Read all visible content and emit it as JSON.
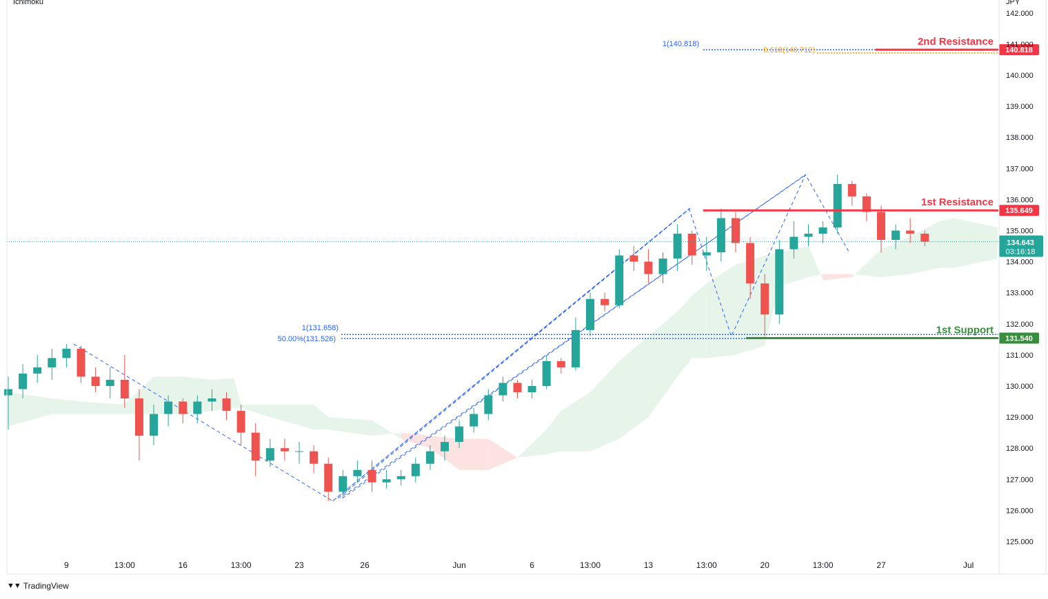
{
  "indicator": "Ichimoku",
  "brand": "TradingView",
  "colors": {
    "up": "#26a69a",
    "down": "#ef5350",
    "resistance": "#f23645",
    "support": "#388e3c",
    "fib_blue": "#2962ff",
    "fib_orange": "#ff9800",
    "cloud_bull": "#e6f4ea",
    "cloud_bear": "#fde2e2",
    "price_tag": "#26a69a"
  },
  "chart_data": {
    "type": "candlestick",
    "instrument_currency": "JPY",
    "y_axis": {
      "min": 124.5,
      "max": 142.4,
      "ticks": [
        "142.000",
        "141.000",
        "140.000",
        "139.000",
        "138.000",
        "137.000",
        "136.000",
        "135.000",
        "134.000",
        "133.000",
        "132.000",
        "131.000",
        "130.000",
        "129.000",
        "128.000",
        "127.000",
        "126.000",
        "125.000"
      ]
    },
    "x_axis": {
      "ticks": [
        {
          "label": "9",
          "i": 4
        },
        {
          "label": "13:00",
          "i": 8
        },
        {
          "label": "16",
          "i": 12
        },
        {
          "label": "13:00",
          "i": 16
        },
        {
          "label": "23",
          "i": 20
        },
        {
          "label": "26",
          "i": 24.5
        },
        {
          "label": "Jun",
          "i": 31
        },
        {
          "label": "6",
          "i": 36
        },
        {
          "label": "13:00",
          "i": 40
        },
        {
          "label": "13",
          "i": 44
        },
        {
          "label": "13:00",
          "i": 48
        },
        {
          "label": "20",
          "i": 52
        },
        {
          "label": "13:00",
          "i": 56
        },
        {
          "label": "27",
          "i": 60
        },
        {
          "label": "Jul",
          "i": 66
        }
      ]
    },
    "levels": [
      {
        "name": "2nd Resistance",
        "value": 140.818,
        "label": "140.818",
        "kind": "resistance"
      },
      {
        "name": "1st Resistance",
        "value": 135.649,
        "label": "135.649",
        "kind": "resistance"
      },
      {
        "name": "1st Support",
        "value": 131.54,
        "label": "131.540",
        "kind": "support"
      }
    ],
    "fib_labels": [
      {
        "text": "1(140.818)",
        "value": 140.818,
        "color": "blue"
      },
      {
        "text": "0.618(140.712)",
        "value": 140.712,
        "color": "orange"
      },
      {
        "text": "1(131.658)",
        "value": 131.658,
        "color": "blue"
      },
      {
        "text": "50.00%(131.526)",
        "value": 131.526,
        "color": "blue"
      }
    ],
    "current": {
      "price": "134.643",
      "countdown": "03:16:18",
      "value": 134.643
    },
    "pivots": [
      {
        "i": 4.5,
        "v": 131.35
      },
      {
        "i": 22.3,
        "v": 126.3
      },
      {
        "i": 46.8,
        "v": 135.7
      },
      {
        "i": 49.7,
        "v": 131.6
      },
      {
        "i": 54.8,
        "v": 136.8
      },
      {
        "i": 57.8,
        "v": 134.3
      }
    ],
    "candles": [
      {
        "o": 129.7,
        "h": 130.3,
        "l": 128.6,
        "c": 129.9
      },
      {
        "o": 129.9,
        "h": 130.7,
        "l": 129.6,
        "c": 130.4
      },
      {
        "o": 130.4,
        "h": 131.0,
        "l": 130.1,
        "c": 130.6
      },
      {
        "o": 130.6,
        "h": 131.2,
        "l": 130.2,
        "c": 130.9
      },
      {
        "o": 130.9,
        "h": 131.35,
        "l": 130.6,
        "c": 131.2
      },
      {
        "o": 131.2,
        "h": 131.3,
        "l": 130.1,
        "c": 130.3
      },
      {
        "o": 130.3,
        "h": 130.6,
        "l": 129.8,
        "c": 130.0
      },
      {
        "o": 130.0,
        "h": 130.6,
        "l": 129.6,
        "c": 130.2
      },
      {
        "o": 130.2,
        "h": 131.0,
        "l": 129.3,
        "c": 129.6
      },
      {
        "o": 129.6,
        "h": 129.9,
        "l": 127.6,
        "c": 128.4
      },
      {
        "o": 128.4,
        "h": 129.4,
        "l": 128.1,
        "c": 129.1
      },
      {
        "o": 129.1,
        "h": 129.7,
        "l": 128.7,
        "c": 129.5
      },
      {
        "o": 129.5,
        "h": 129.6,
        "l": 128.8,
        "c": 129.1
      },
      {
        "o": 129.1,
        "h": 129.7,
        "l": 128.8,
        "c": 129.5
      },
      {
        "o": 129.5,
        "h": 129.9,
        "l": 129.2,
        "c": 129.6
      },
      {
        "o": 129.6,
        "h": 129.8,
        "l": 128.9,
        "c": 129.2
      },
      {
        "o": 129.2,
        "h": 129.4,
        "l": 128.1,
        "c": 128.5
      },
      {
        "o": 128.5,
        "h": 128.8,
        "l": 127.1,
        "c": 127.6
      },
      {
        "o": 127.6,
        "h": 128.3,
        "l": 127.4,
        "c": 128.0
      },
      {
        "o": 128.0,
        "h": 128.3,
        "l": 127.6,
        "c": 127.9
      },
      {
        "o": 127.9,
        "h": 128.2,
        "l": 127.5,
        "c": 127.9
      },
      {
        "o": 127.9,
        "h": 128.1,
        "l": 127.2,
        "c": 127.5
      },
      {
        "o": 127.5,
        "h": 127.7,
        "l": 126.3,
        "c": 126.6
      },
      {
        "o": 126.6,
        "h": 127.3,
        "l": 126.4,
        "c": 127.1
      },
      {
        "o": 127.1,
        "h": 127.6,
        "l": 126.9,
        "c": 127.3
      },
      {
        "o": 127.3,
        "h": 127.6,
        "l": 126.6,
        "c": 126.9
      },
      {
        "o": 126.9,
        "h": 127.3,
        "l": 126.7,
        "c": 127.0
      },
      {
        "o": 127.0,
        "h": 127.3,
        "l": 126.8,
        "c": 127.1
      },
      {
        "o": 127.1,
        "h": 127.7,
        "l": 126.9,
        "c": 127.5
      },
      {
        "o": 127.5,
        "h": 128.1,
        "l": 127.3,
        "c": 127.9
      },
      {
        "o": 127.9,
        "h": 128.4,
        "l": 127.6,
        "c": 128.2
      },
      {
        "o": 128.2,
        "h": 128.9,
        "l": 128.0,
        "c": 128.7
      },
      {
        "o": 128.7,
        "h": 129.3,
        "l": 128.5,
        "c": 129.1
      },
      {
        "o": 129.1,
        "h": 129.9,
        "l": 128.9,
        "c": 129.7
      },
      {
        "o": 129.7,
        "h": 130.3,
        "l": 129.5,
        "c": 130.1
      },
      {
        "o": 130.1,
        "h": 130.2,
        "l": 129.6,
        "c": 129.8
      },
      {
        "o": 129.8,
        "h": 130.2,
        "l": 129.6,
        "c": 130.0
      },
      {
        "o": 130.0,
        "h": 131.0,
        "l": 129.9,
        "c": 130.8
      },
      {
        "o": 130.8,
        "h": 130.9,
        "l": 130.4,
        "c": 130.6
      },
      {
        "o": 130.6,
        "h": 132.2,
        "l": 130.5,
        "c": 131.8
      },
      {
        "o": 131.8,
        "h": 133.0,
        "l": 131.6,
        "c": 132.8
      },
      {
        "o": 132.8,
        "h": 133.0,
        "l": 132.4,
        "c": 132.6
      },
      {
        "o": 132.6,
        "h": 134.4,
        "l": 132.5,
        "c": 134.2
      },
      {
        "o": 134.2,
        "h": 134.5,
        "l": 133.7,
        "c": 134.0
      },
      {
        "o": 134.0,
        "h": 134.4,
        "l": 133.3,
        "c": 133.6
      },
      {
        "o": 133.6,
        "h": 134.3,
        "l": 133.3,
        "c": 134.1
      },
      {
        "o": 134.1,
        "h": 135.2,
        "l": 133.7,
        "c": 134.9
      },
      {
        "o": 134.9,
        "h": 135.0,
        "l": 133.9,
        "c": 134.2
      },
      {
        "o": 134.2,
        "h": 134.8,
        "l": 133.7,
        "c": 134.3
      },
      {
        "o": 134.3,
        "h": 135.7,
        "l": 134.0,
        "c": 135.4
      },
      {
        "o": 135.4,
        "h": 135.6,
        "l": 134.3,
        "c": 134.6
      },
      {
        "o": 134.6,
        "h": 134.8,
        "l": 132.8,
        "c": 133.3
      },
      {
        "o": 133.3,
        "h": 133.6,
        "l": 131.6,
        "c": 132.3
      },
      {
        "o": 132.3,
        "h": 134.7,
        "l": 132.0,
        "c": 134.4
      },
      {
        "o": 134.4,
        "h": 135.3,
        "l": 134.1,
        "c": 134.8
      },
      {
        "o": 134.8,
        "h": 135.2,
        "l": 134.5,
        "c": 134.9
      },
      {
        "o": 134.9,
        "h": 135.3,
        "l": 134.6,
        "c": 135.1
      },
      {
        "o": 135.1,
        "h": 136.8,
        "l": 134.9,
        "c": 136.5
      },
      {
        "o": 136.5,
        "h": 136.6,
        "l": 135.8,
        "c": 136.1
      },
      {
        "o": 136.1,
        "h": 136.2,
        "l": 135.3,
        "c": 135.6
      },
      {
        "o": 135.6,
        "h": 135.8,
        "l": 134.3,
        "c": 134.7
      },
      {
        "o": 134.7,
        "h": 135.2,
        "l": 134.4,
        "c": 135.0
      },
      {
        "o": 135.0,
        "h": 135.4,
        "l": 134.6,
        "c": 134.9
      },
      {
        "o": 134.9,
        "h": 135.0,
        "l": 134.5,
        "c": 134.643
      }
    ],
    "cloud": [
      {
        "i": 0,
        "a": 129.8,
        "b": 128.7
      },
      {
        "i": 3,
        "a": 129.6,
        "b": 129.1
      },
      {
        "i": 5,
        "a": 129.5,
        "b": 129.1
      },
      {
        "i": 8,
        "a": 129.4,
        "b": 129.1
      },
      {
        "i": 10,
        "a": 130.3,
        "b": 129.1
      },
      {
        "i": 12,
        "a": 130.3,
        "b": 129.1
      },
      {
        "i": 14,
        "a": 130.2,
        "b": 129.2
      },
      {
        "i": 15.5,
        "a": 130.25,
        "b": 129.3
      },
      {
        "i": 16,
        "a": 129.4,
        "b": 129.3
      },
      {
        "i": 18,
        "a": 129.4,
        "b": 129.0
      },
      {
        "i": 21,
        "a": 129.4,
        "b": 128.6
      },
      {
        "i": 22,
        "a": 129.0,
        "b": 128.6
      },
      {
        "i": 25,
        "a": 128.9,
        "b": 128.4
      },
      {
        "i": 27,
        "a": 128.3,
        "b": 128.5
      },
      {
        "i": 29,
        "a": 128.0,
        "b": 128.4
      },
      {
        "i": 31,
        "a": 127.3,
        "b": 128.3
      },
      {
        "i": 33,
        "a": 127.3,
        "b": 128.3
      },
      {
        "i": 35,
        "a": 127.7,
        "b": 127.7
      },
      {
        "i": 37,
        "a": 128.6,
        "b": 127.8
      },
      {
        "i": 38,
        "a": 129.2,
        "b": 127.9
      },
      {
        "i": 40,
        "a": 129.8,
        "b": 127.9
      },
      {
        "i": 42,
        "a": 130.8,
        "b": 128.3
      },
      {
        "i": 44,
        "a": 131.6,
        "b": 129.0
      },
      {
        "i": 46,
        "a": 132.4,
        "b": 130.3
      },
      {
        "i": 47,
        "a": 132.9,
        "b": 130.9
      },
      {
        "i": 48,
        "a": 133.3,
        "b": 130.9
      },
      {
        "i": 50,
        "a": 133.9,
        "b": 131.0
      },
      {
        "i": 52,
        "a": 134.2,
        "b": 131.3
      },
      {
        "i": 53,
        "a": 134.3,
        "b": 133.2
      },
      {
        "i": 55,
        "a": 134.5,
        "b": 133.5
      },
      {
        "i": 56,
        "a": 133.4,
        "b": 133.6
      },
      {
        "i": 58,
        "a": 133.5,
        "b": 133.6
      },
      {
        "i": 60,
        "a": 134.4,
        "b": 133.5
      },
      {
        "i": 62,
        "a": 134.8,
        "b": 133.6
      },
      {
        "i": 64,
        "a": 135.3,
        "b": 133.8
      },
      {
        "i": 65,
        "a": 135.4,
        "b": 133.8
      },
      {
        "i": 68,
        "a": 135.1,
        "b": 134.1
      }
    ]
  }
}
